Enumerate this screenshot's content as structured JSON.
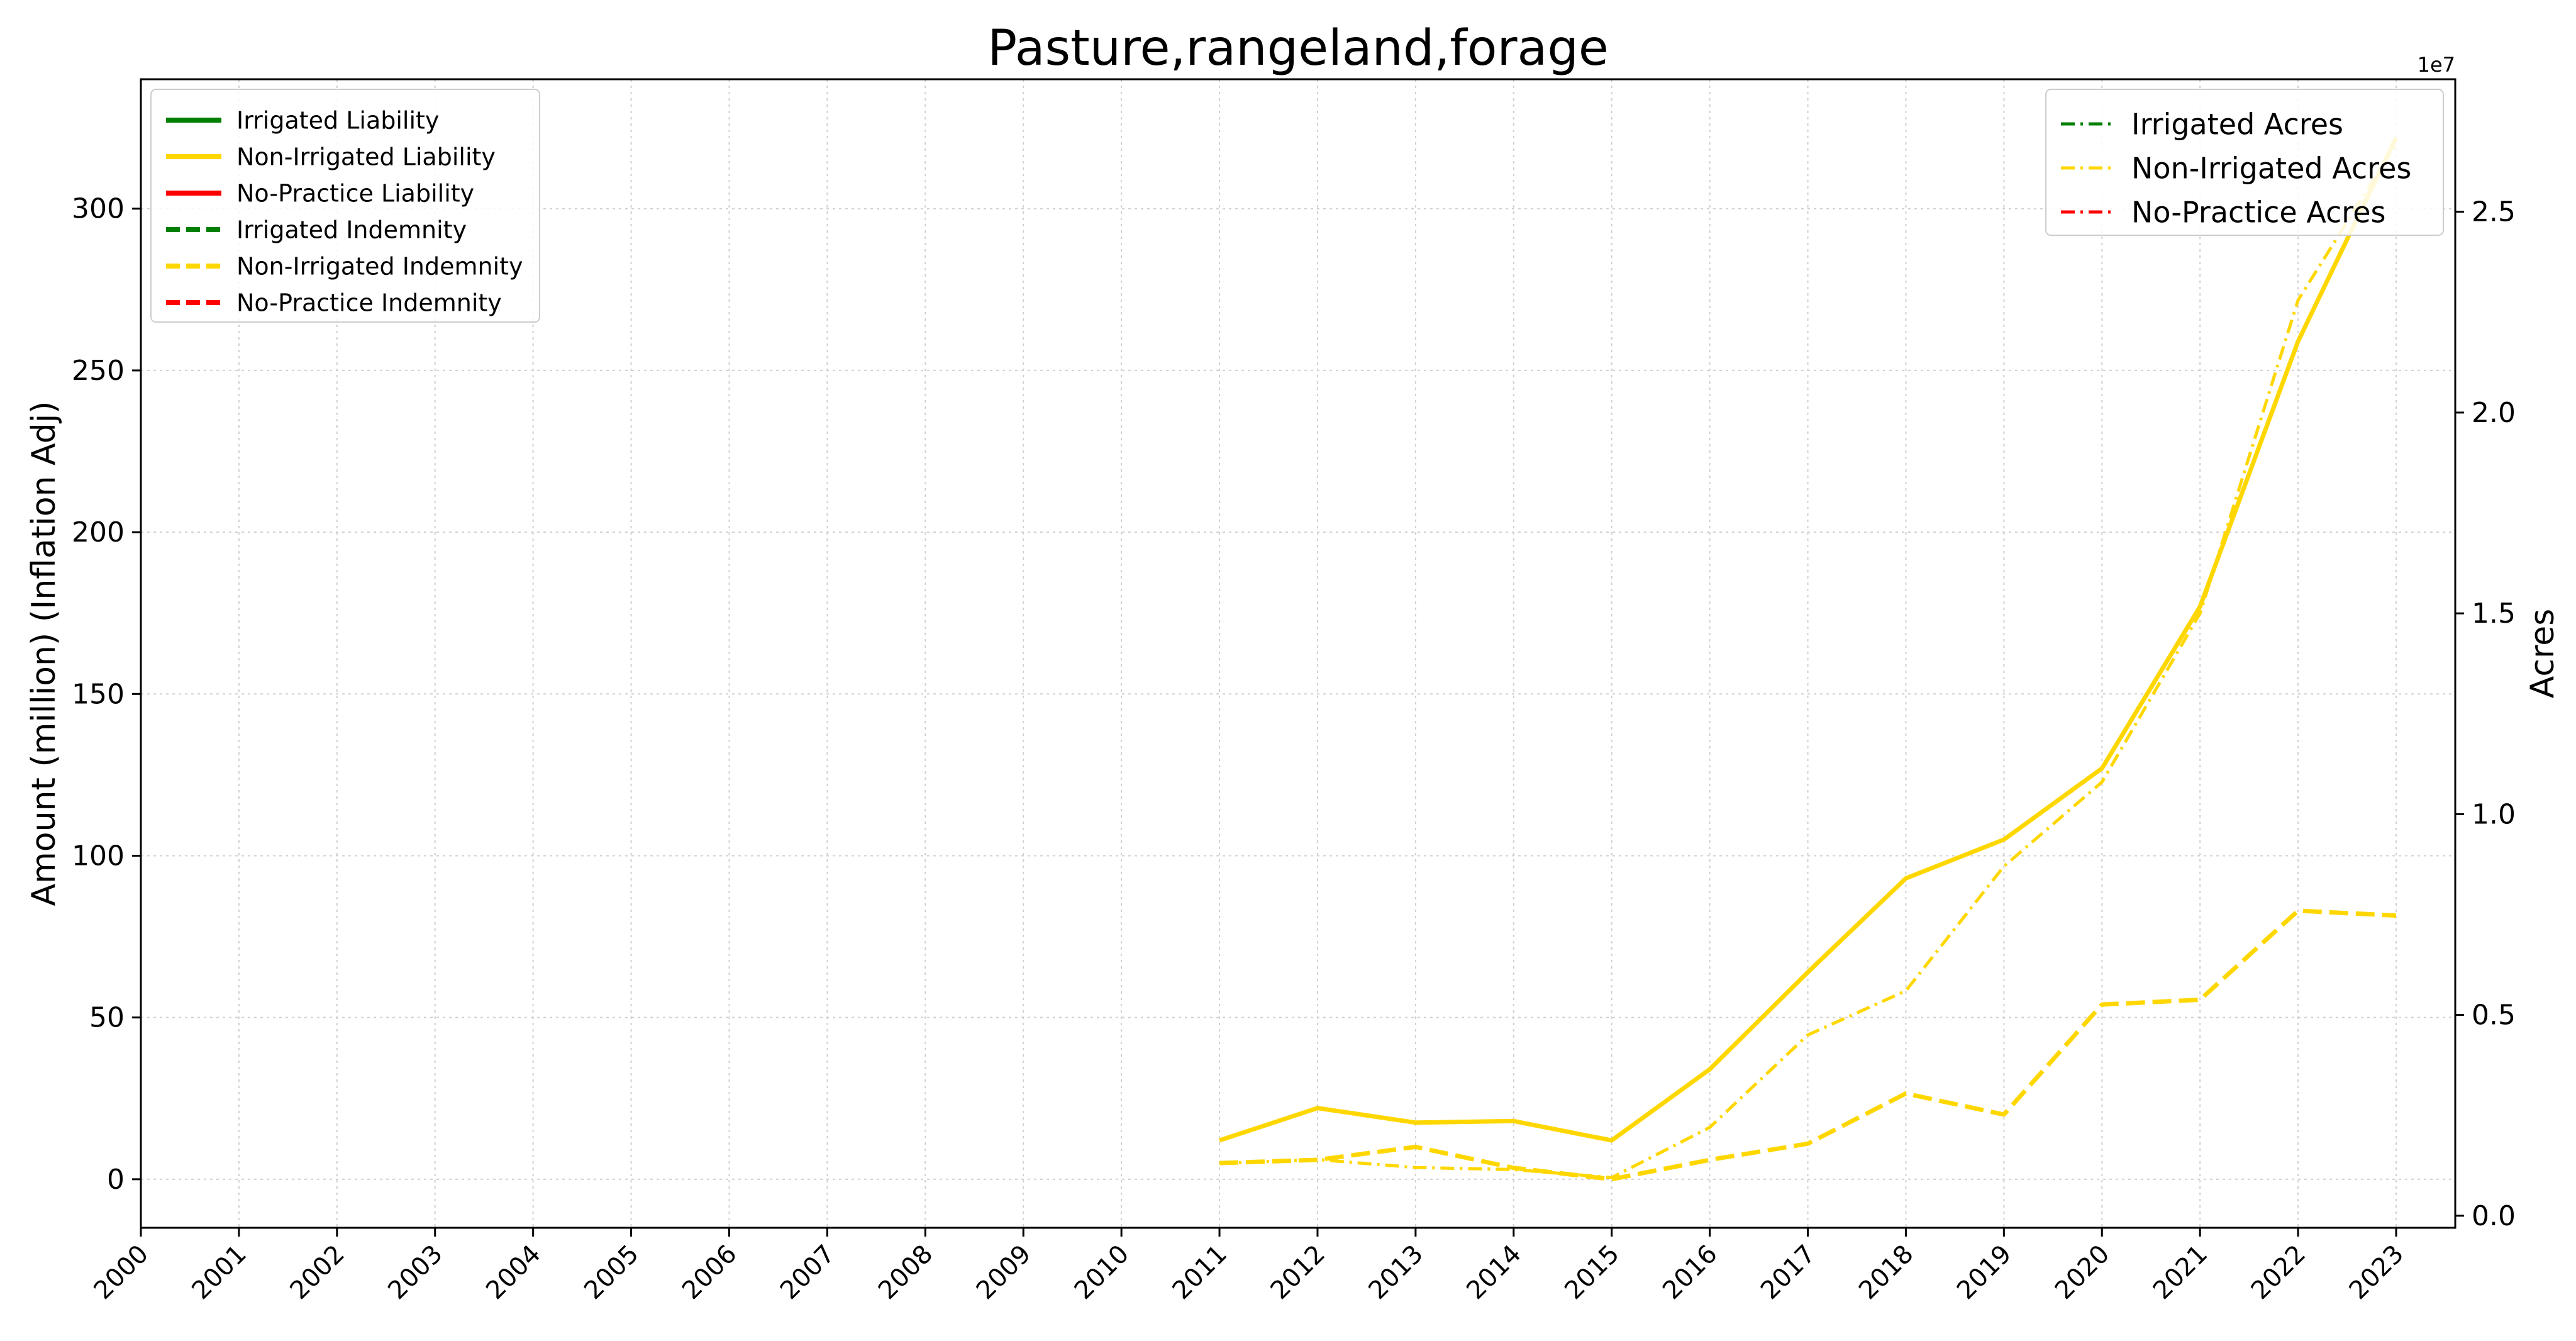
{
  "chart_data": {
    "type": "line",
    "title": "Pasture,rangeland,forage",
    "ylabel": "Amount (million) (Inflation Adj)",
    "y2label": "Acres",
    "y2_offset_text": "1e7",
    "x": [
      "2000",
      "2001",
      "2002",
      "2003",
      "2004",
      "2005",
      "2006",
      "2007",
      "2008",
      "2009",
      "2010",
      "2011",
      "2012",
      "2013",
      "2014",
      "2015",
      "2016",
      "2017",
      "2018",
      "2019",
      "2020",
      "2021",
      "2022",
      "2023"
    ],
    "ylim": [
      -15,
      340
    ],
    "y2lim": [
      -0.03,
      2.83
    ],
    "yticks": [
      "0",
      "50",
      "100",
      "150",
      "200",
      "250",
      "300"
    ],
    "y2ticks": [
      "0.0",
      "0.5",
      "1.0",
      "1.5",
      "2.0",
      "2.5"
    ],
    "grid": true,
    "legend_left_placement": "top-left",
    "legend_right_placement": "top-right",
    "legend_left": [
      {
        "label": "Irrigated Liability",
        "color": "#008000",
        "style": "solid"
      },
      {
        "label": "Non-Irrigated Liability",
        "color": "#FFD700",
        "style": "solid"
      },
      {
        "label": "No-Practice Liability",
        "color": "#FF0000",
        "style": "solid"
      },
      {
        "label": "Irrigated Indemnity",
        "color": "#008000",
        "style": "dashed"
      },
      {
        "label": "Non-Irrigated Indemnity",
        "color": "#FFD700",
        "style": "dashed"
      },
      {
        "label": "No-Practice Indemnity",
        "color": "#FF0000",
        "style": "dashed"
      }
    ],
    "legend_right": [
      {
        "label": "Irrigated Acres",
        "color": "#008000",
        "style": "dashdot"
      },
      {
        "label": "Non-Irrigated Acres",
        "color": "#FFD700",
        "style": "dashdot"
      },
      {
        "label": "No-Practice Acres",
        "color": "#FF0000",
        "style": "dashdot"
      }
    ],
    "series": [
      {
        "name": "Non-Irrigated Liability",
        "axis": "left",
        "color": "#FFD700",
        "style": "solid",
        "x": [
          "2011",
          "2012",
          "2013",
          "2014",
          "2015",
          "2016",
          "2017",
          "2018",
          "2019",
          "2020",
          "2021",
          "2022",
          "2023"
        ],
        "values": [
          12,
          22,
          17.5,
          18,
          12,
          34,
          64,
          93,
          105,
          127,
          177,
          259,
          322
        ]
      },
      {
        "name": "Non-Irrigated Indemnity",
        "axis": "left",
        "color": "#FFD700",
        "style": "dashed",
        "x": [
          "2011",
          "2012",
          "2013",
          "2014",
          "2015",
          "2016",
          "2017",
          "2018",
          "2019",
          "2020",
          "2021",
          "2022",
          "2023"
        ],
        "values": [
          5,
          6,
          10,
          3.5,
          0,
          6,
          11,
          26.5,
          20,
          54,
          55.5,
          83,
          81.5
        ]
      },
      {
        "name": "Non-Irrigated Acres",
        "axis": "right",
        "color": "#FFD700",
        "style": "dashdot",
        "x": [
          "2011",
          "2012",
          "2013",
          "2014",
          "2015",
          "2016",
          "2017",
          "2018",
          "2019",
          "2020",
          "2021",
          "2022",
          "2023"
        ],
        "values": [
          0.13,
          0.14,
          0.12,
          0.115,
          0.095,
          0.22,
          0.45,
          0.56,
          0.87,
          1.08,
          1.5,
          2.28,
          2.67
        ]
      }
    ]
  }
}
